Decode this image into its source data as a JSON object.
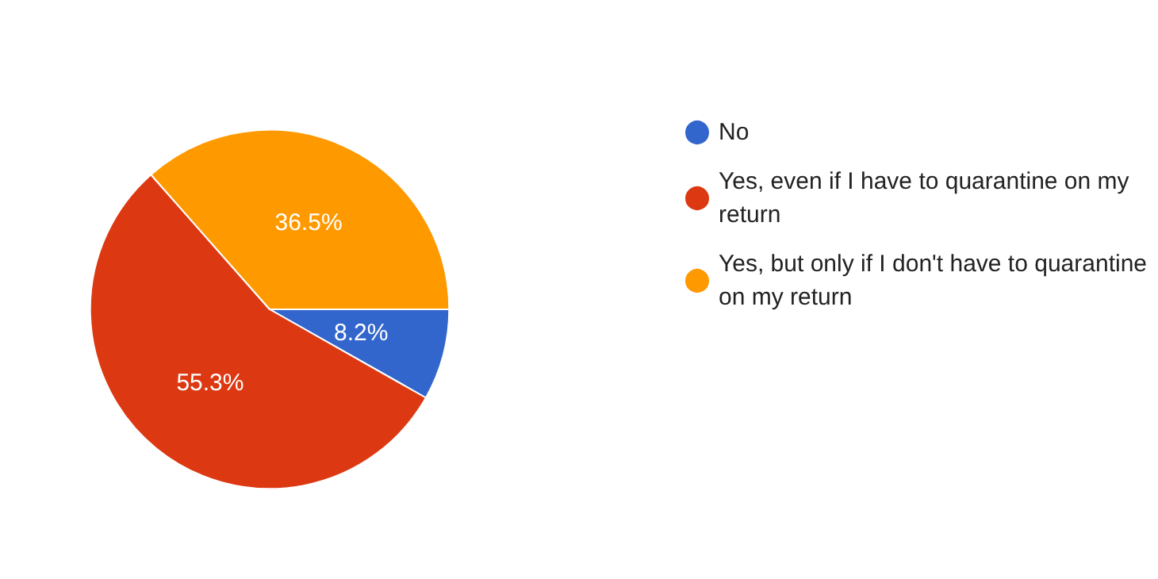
{
  "chart_data": {
    "type": "pie",
    "categories": [
      "No",
      "Yes, even if I have to quarantine on my return",
      "Yes, but only if I don't have to quarantine on my return"
    ],
    "values": [
      8.2,
      55.3,
      36.5
    ],
    "colors": [
      "#3366cc",
      "#dc3912",
      "#ff9900"
    ],
    "value_labels": [
      "8.2%",
      "55.3%",
      "36.5%"
    ],
    "legend": "right"
  }
}
